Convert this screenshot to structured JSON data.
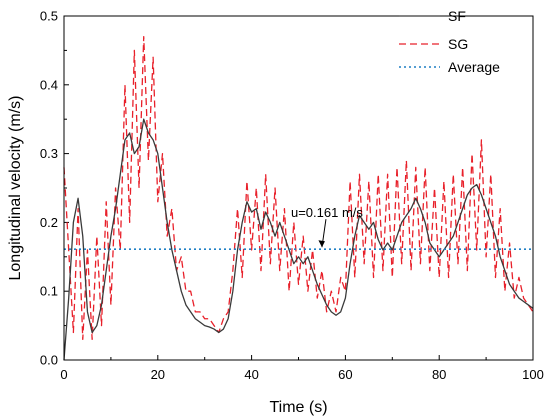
{
  "chart_data": {
    "type": "line",
    "title": "",
    "xlabel": "Time (s)",
    "ylabel": "Longitudinal velocity (m/s)",
    "xlim": [
      0,
      100
    ],
    "ylim": [
      0,
      0.5
    ],
    "xticks": [
      0,
      20,
      40,
      60,
      80,
      100
    ],
    "yticks": [
      0.0,
      0.1,
      0.2,
      0.3,
      0.4,
      0.5
    ],
    "xtick_labels": [
      "0",
      "20",
      "40",
      "60",
      "80",
      "100"
    ],
    "ytick_labels": [
      "0.0",
      "0.1",
      "0.2",
      "0.3",
      "0.4",
      "0.5"
    ],
    "grid": false,
    "legend": {
      "position": "top-right",
      "entries": [
        "SF",
        "SG",
        "Average"
      ]
    },
    "annotation": {
      "text": "u=0.161 m/s",
      "arrow_to": [
        55,
        0.161
      ]
    },
    "series": [
      {
        "name": "SF",
        "style": "solid",
        "color": "#3a3a3a",
        "x": [
          0,
          1,
          2,
          3,
          4,
          5,
          6,
          7,
          8,
          9,
          10,
          11,
          12,
          13,
          14,
          15,
          16,
          17,
          18,
          19,
          20,
          21,
          22,
          23,
          24,
          25,
          26,
          27,
          28,
          29,
          30,
          31,
          32,
          33,
          34,
          35,
          36,
          37,
          38,
          39,
          40,
          41,
          42,
          43,
          44,
          45,
          46,
          47,
          48,
          49,
          50,
          51,
          52,
          53,
          54,
          55,
          56,
          57,
          58,
          59,
          60,
          61,
          62,
          63,
          64,
          65,
          66,
          67,
          68,
          69,
          70,
          71,
          72,
          73,
          74,
          75,
          76,
          77,
          78,
          79,
          80,
          81,
          82,
          83,
          84,
          85,
          86,
          87,
          88,
          89,
          90,
          91,
          92,
          93,
          94,
          95,
          96,
          97,
          98,
          99,
          100
        ],
        "y": [
          0.0,
          0.09,
          0.2,
          0.235,
          0.18,
          0.07,
          0.04,
          0.05,
          0.08,
          0.13,
          0.18,
          0.22,
          0.27,
          0.32,
          0.33,
          0.3,
          0.31,
          0.35,
          0.33,
          0.32,
          0.3,
          0.25,
          0.2,
          0.16,
          0.13,
          0.1,
          0.08,
          0.07,
          0.06,
          0.055,
          0.05,
          0.048,
          0.045,
          0.04,
          0.045,
          0.06,
          0.1,
          0.16,
          0.2,
          0.23,
          0.215,
          0.22,
          0.19,
          0.215,
          0.2,
          0.18,
          0.2,
          0.18,
          0.16,
          0.14,
          0.15,
          0.14,
          0.15,
          0.13,
          0.11,
          0.095,
          0.08,
          0.07,
          0.065,
          0.07,
          0.09,
          0.14,
          0.18,
          0.21,
          0.2,
          0.19,
          0.2,
          0.175,
          0.16,
          0.17,
          0.16,
          0.18,
          0.2,
          0.21,
          0.22,
          0.235,
          0.22,
          0.2,
          0.17,
          0.16,
          0.15,
          0.16,
          0.17,
          0.18,
          0.2,
          0.22,
          0.24,
          0.25,
          0.255,
          0.24,
          0.22,
          0.2,
          0.18,
          0.15,
          0.13,
          0.11,
          0.1,
          0.09,
          0.085,
          0.08,
          0.075
        ]
      },
      {
        "name": "SG",
        "style": "dashed",
        "color": "#e8202a",
        "x": [
          0,
          1,
          2,
          3,
          4,
          5,
          6,
          7,
          8,
          9,
          10,
          11,
          12,
          13,
          14,
          15,
          16,
          17,
          18,
          19,
          20,
          21,
          22,
          23,
          24,
          25,
          26,
          27,
          28,
          29,
          30,
          31,
          32,
          33,
          34,
          35,
          36,
          37,
          38,
          39,
          40,
          41,
          42,
          43,
          44,
          45,
          46,
          47,
          48,
          49,
          50,
          51,
          52,
          53,
          54,
          55,
          56,
          57,
          58,
          59,
          60,
          61,
          62,
          63,
          64,
          65,
          66,
          67,
          68,
          69,
          70,
          71,
          72,
          73,
          74,
          75,
          76,
          77,
          78,
          79,
          80,
          81,
          82,
          83,
          84,
          85,
          86,
          87,
          88,
          89,
          90,
          91,
          92,
          93,
          94,
          95,
          96,
          97,
          98,
          99,
          100
        ],
        "y": [
          0.28,
          0.16,
          0.04,
          0.22,
          0.03,
          0.16,
          0.03,
          0.18,
          0.05,
          0.23,
          0.08,
          0.25,
          0.16,
          0.4,
          0.2,
          0.45,
          0.25,
          0.47,
          0.29,
          0.44,
          0.23,
          0.3,
          0.18,
          0.22,
          0.13,
          0.15,
          0.1,
          0.1,
          0.07,
          0.07,
          0.06,
          0.06,
          0.05,
          0.04,
          0.06,
          0.07,
          0.13,
          0.22,
          0.12,
          0.26,
          0.16,
          0.25,
          0.13,
          0.27,
          0.14,
          0.25,
          0.13,
          0.22,
          0.1,
          0.2,
          0.11,
          0.18,
          0.1,
          0.16,
          0.09,
          0.13,
          0.07,
          0.1,
          0.07,
          0.12,
          0.1,
          0.26,
          0.12,
          0.27,
          0.14,
          0.26,
          0.12,
          0.27,
          0.13,
          0.27,
          0.12,
          0.28,
          0.14,
          0.29,
          0.13,
          0.28,
          0.14,
          0.28,
          0.13,
          0.25,
          0.12,
          0.26,
          0.12,
          0.27,
          0.14,
          0.28,
          0.13,
          0.3,
          0.16,
          0.32,
          0.15,
          0.27,
          0.12,
          0.22,
          0.1,
          0.17,
          0.09,
          0.12,
          0.09,
          0.08,
          0.07
        ]
      },
      {
        "name": "Average",
        "style": "dotted",
        "color": "#1f7fc4",
        "x": [
          0,
          100
        ],
        "y": [
          0.161,
          0.161
        ]
      }
    ]
  }
}
